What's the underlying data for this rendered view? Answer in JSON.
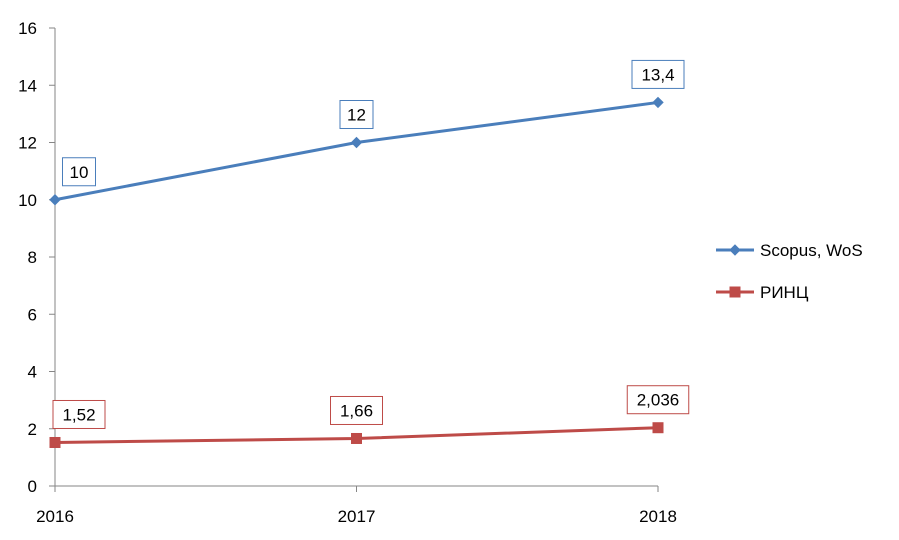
{
  "chart_data": {
    "type": "line",
    "x": [
      "2016",
      "2017",
      "2018"
    ],
    "ylim": [
      0,
      16
    ],
    "yticks": [
      0,
      2,
      4,
      6,
      8,
      10,
      12,
      14,
      16
    ],
    "grid": false,
    "legend_position": "right",
    "series": [
      {
        "name": "Scopus, WoS",
        "values": [
          10,
          12,
          13.4
        ],
        "labels": [
          "10",
          "12",
          "13,4"
        ],
        "color": "#4A7EBB",
        "marker": "diamond"
      },
      {
        "name": "РИНЦ",
        "values": [
          1.52,
          1.66,
          2.036
        ],
        "labels": [
          "1,52",
          "1,66",
          "2,036"
        ],
        "color": "#BE4B48",
        "marker": "square"
      }
    ]
  }
}
